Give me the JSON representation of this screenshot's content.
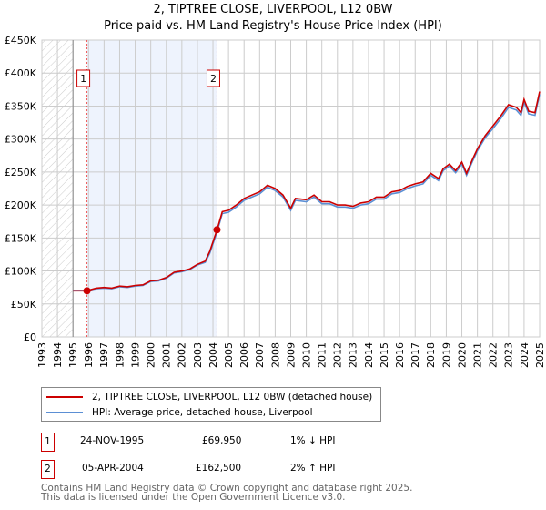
{
  "chart_data": {
    "type": "line",
    "title": "2, TIPTREE CLOSE, LIVERPOOL, L12 0BW",
    "subtitle": "Price paid vs. HM Land Registry's House Price Index (HPI)",
    "xlim": [
      1993,
      2025
    ],
    "ylim": [
      0,
      450000
    ],
    "x_ticks": [
      "1993",
      "1994",
      "1995",
      "1996",
      "1997",
      "1998",
      "1999",
      "2000",
      "2001",
      "2002",
      "2003",
      "2004",
      "2005",
      "2006",
      "2007",
      "2008",
      "2009",
      "2010",
      "2011",
      "2012",
      "2013",
      "2014",
      "2015",
      "2016",
      "2017",
      "2018",
      "2019",
      "2020",
      "2021",
      "2022",
      "2023",
      "2024",
      "2025"
    ],
    "y_ticks": [
      {
        "v": 0,
        "label": "£0"
      },
      {
        "v": 50000,
        "label": "£50K"
      },
      {
        "v": 100000,
        "label": "£100K"
      },
      {
        "v": 150000,
        "label": "£150K"
      },
      {
        "v": 200000,
        "label": "£200K"
      },
      {
        "v": 250000,
        "label": "£250K"
      },
      {
        "v": 300000,
        "label": "£300K"
      },
      {
        "v": 350000,
        "label": "£350K"
      },
      {
        "v": 400000,
        "label": "£400K"
      },
      {
        "v": 450000,
        "label": "£450K"
      }
    ],
    "grid": true,
    "hatched_range": [
      1993,
      1995
    ],
    "shaded_range": [
      1995.9,
      2004.26
    ],
    "x": [
      1995.0,
      1995.9,
      1996.5,
      1997,
      1997.5,
      1998,
      1998.5,
      1999,
      1999.5,
      2000,
      2000.5,
      2001,
      2001.5,
      2002,
      2002.5,
      2003,
      2003.5,
      2003.8,
      2004.26,
      2004.6,
      2005,
      2005.5,
      2006,
      2006.5,
      2007,
      2007.5,
      2008,
      2008.5,
      2009,
      2009.3,
      2010,
      2010.5,
      2011,
      2011.5,
      2012,
      2012.5,
      2013,
      2013.5,
      2014,
      2014.5,
      2015,
      2015.5,
      2016,
      2016.5,
      2017,
      2017.5,
      2018,
      2018.5,
      2018.8,
      2019.2,
      2019.6,
      2020,
      2020.3,
      2020.7,
      2021,
      2021.5,
      2022,
      2022.5,
      2023,
      2023.5,
      2023.8,
      2024,
      2024.3,
      2024.7,
      2025
    ],
    "series": [
      {
        "name": "2, TIPTREE CLOSE, LIVERPOOL, L12 0BW (detached house)",
        "color": "#cc0000",
        "values": [
          70000,
          69950,
          74000,
          75000,
          74000,
          77000,
          76000,
          78000,
          79000,
          85000,
          86000,
          90000,
          98000,
          100000,
          103000,
          110000,
          115000,
          130000,
          162500,
          190000,
          192000,
          200000,
          210000,
          215000,
          220000,
          230000,
          225000,
          215000,
          195000,
          210000,
          208000,
          215000,
          205000,
          205000,
          200000,
          200000,
          198000,
          203000,
          205000,
          212000,
          212000,
          220000,
          222000,
          228000,
          232000,
          235000,
          248000,
          240000,
          255000,
          262000,
          252000,
          265000,
          248000,
          270000,
          285000,
          305000,
          320000,
          335000,
          352000,
          348000,
          340000,
          360000,
          342000,
          340000,
          372000
        ]
      },
      {
        "name": "HPI: Average price, detached house, Liverpool",
        "color": "#5b8fd4",
        "values": [
          70500,
          70600,
          73000,
          74000,
          73000,
          76000,
          75000,
          77000,
          78000,
          84000,
          85000,
          89000,
          97000,
          99000,
          102000,
          109000,
          113000,
          127000,
          159000,
          187000,
          189000,
          197000,
          207000,
          212000,
          217000,
          227000,
          222000,
          212000,
          192000,
          207000,
          205000,
          212000,
          202000,
          202000,
          197000,
          197000,
          195000,
          200000,
          202000,
          209000,
          209000,
          217000,
          219000,
          225000,
          229000,
          232000,
          245000,
          237000,
          252000,
          259000,
          249000,
          262000,
          245000,
          267000,
          282000,
          302000,
          316000,
          331000,
          348000,
          344000,
          336000,
          356000,
          338000,
          336000,
          368000
        ]
      }
    ],
    "sales": [
      {
        "id": "1",
        "x": 1995.9,
        "value": 69950
      },
      {
        "id": "2",
        "x": 2004.26,
        "value": 162500
      }
    ]
  },
  "legend": {
    "items": [
      "2, TIPTREE CLOSE, LIVERPOOL, L12 0BW (detached house)",
      "HPI: Average price, detached house, Liverpool"
    ]
  },
  "transactions": [
    {
      "id": "1",
      "date": "24-NOV-1995",
      "price": "£69,950",
      "hpi": "1% ↓ HPI"
    },
    {
      "id": "2",
      "date": "05-APR-2004",
      "price": "£162,500",
      "hpi": "2% ↑ HPI"
    }
  ],
  "footer": {
    "line1": "Contains HM Land Registry data © Crown copyright and database right 2025.",
    "line2": "This data is licensed under the Open Government Licence v3.0."
  }
}
